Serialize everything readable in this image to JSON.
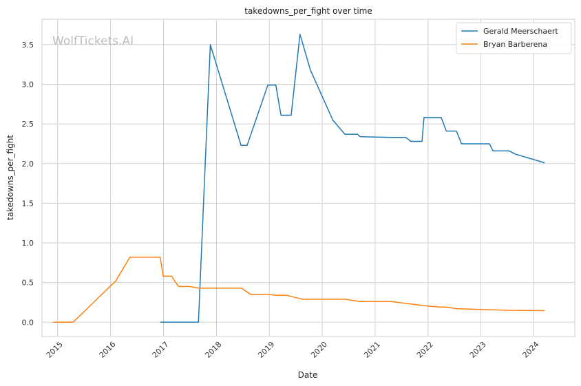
{
  "chart_data": {
    "type": "line",
    "title": "takedowns_per_fight over time",
    "xlabel": "Date",
    "ylabel": "takedowns_per_fight",
    "watermark": "WolfTickets.AI",
    "x_ticks": [
      "2015",
      "2016",
      "2017",
      "2018",
      "2019",
      "2020",
      "2021",
      "2022",
      "2023",
      "2024"
    ],
    "y_ticks": [
      "0.0",
      "0.5",
      "1.0",
      "1.5",
      "2.0",
      "2.5",
      "3.0",
      "3.5"
    ],
    "xlim": [
      "2014-09-15",
      "2024-10-10"
    ],
    "ylim": [
      -0.18,
      3.82
    ],
    "grid": true,
    "legend_position": "top-right",
    "series": [
      {
        "name": "Gerald Meerschaert",
        "color": "#1f77b4",
        "points": [
          [
            "2016-12-09",
            0.0
          ],
          [
            "2017-08-30",
            0.0
          ],
          [
            "2017-11-20",
            3.5
          ],
          [
            "2018-06-20",
            2.23
          ],
          [
            "2018-08-01",
            2.23
          ],
          [
            "2018-12-22",
            2.99
          ],
          [
            "2019-02-15",
            2.99
          ],
          [
            "2019-03-23",
            2.61
          ],
          [
            "2019-06-01",
            2.61
          ],
          [
            "2019-08-01",
            3.63
          ],
          [
            "2019-10-12",
            3.18
          ],
          [
            "2020-03-14",
            2.55
          ],
          [
            "2020-06-06",
            2.37
          ],
          [
            "2020-09-01",
            2.37
          ],
          [
            "2020-09-19",
            2.34
          ],
          [
            "2021-04-17",
            2.33
          ],
          [
            "2021-08-01",
            2.33
          ],
          [
            "2021-09-04",
            2.28
          ],
          [
            "2021-11-20",
            2.28
          ],
          [
            "2021-12-04",
            2.58
          ],
          [
            "2022-04-02",
            2.58
          ],
          [
            "2022-05-07",
            2.41
          ],
          [
            "2022-07-16",
            2.41
          ],
          [
            "2022-08-20",
            2.25
          ],
          [
            "2023-03-01",
            2.25
          ],
          [
            "2023-03-25",
            2.16
          ],
          [
            "2023-07-15",
            2.16
          ],
          [
            "2023-08-26",
            2.12
          ],
          [
            "2024-03-16",
            2.01
          ]
        ]
      },
      {
        "name": "Bryan Barberena",
        "color": "#ff7f0e",
        "points": [
          [
            "2014-11-29",
            0.0
          ],
          [
            "2015-04-18",
            0.0
          ],
          [
            "2016-02-06",
            0.52
          ],
          [
            "2016-05-14",
            0.82
          ],
          [
            "2016-12-09",
            0.82
          ],
          [
            "2016-12-30",
            0.58
          ],
          [
            "2017-02-25",
            0.58
          ],
          [
            "2017-04-15",
            0.45
          ],
          [
            "2017-07-01",
            0.45
          ],
          [
            "2017-09-01",
            0.43
          ],
          [
            "2018-06-23",
            0.43
          ],
          [
            "2018-08-25",
            0.35
          ],
          [
            "2018-12-22",
            0.35
          ],
          [
            "2019-02-17",
            0.34
          ],
          [
            "2019-04-27",
            0.34
          ],
          [
            "2019-08-17",
            0.29
          ],
          [
            "2020-06-06",
            0.29
          ],
          [
            "2020-09-19",
            0.26
          ],
          [
            "2021-04-17",
            0.26
          ],
          [
            "2021-09-04",
            0.23
          ],
          [
            "2021-11-20",
            0.21
          ],
          [
            "2022-04-02",
            0.19
          ],
          [
            "2022-05-07",
            0.19
          ],
          [
            "2022-07-16",
            0.17
          ],
          [
            "2023-01-01",
            0.16
          ],
          [
            "2023-07-15",
            0.15
          ],
          [
            "2024-03-16",
            0.145
          ]
        ]
      }
    ]
  }
}
